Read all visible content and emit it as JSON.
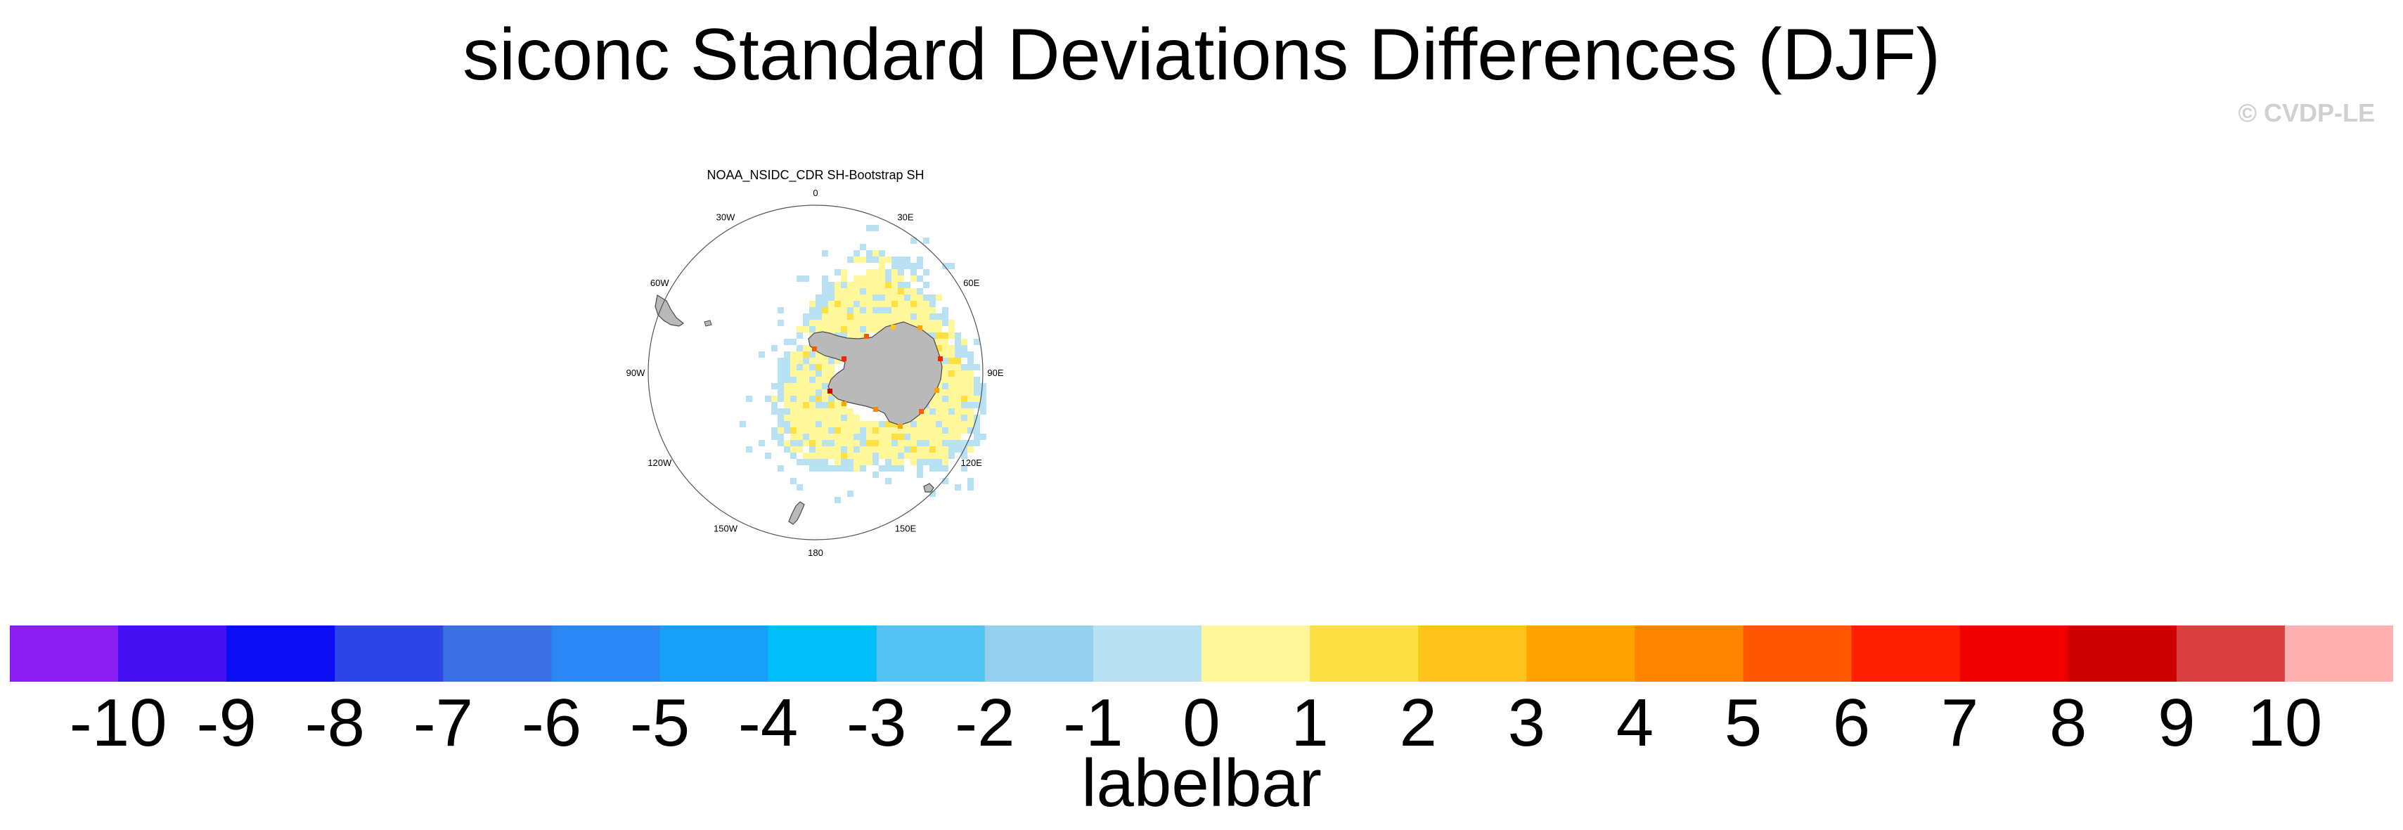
{
  "title": "siconc Standard Deviations Differences (DJF)",
  "credit": "© CVDP-LE",
  "panel": {
    "title": "NOAA_NSIDC_CDR SH-Bootstrap SH",
    "longitude_labels": [
      {
        "text": "0",
        "deg": 0
      },
      {
        "text": "30E",
        "deg": 30
      },
      {
        "text": "60E",
        "deg": 60
      },
      {
        "text": "90E",
        "deg": 90
      },
      {
        "text": "120E",
        "deg": 120
      },
      {
        "text": "150E",
        "deg": 150
      },
      {
        "text": "180",
        "deg": 180
      },
      {
        "text": "150W",
        "deg": 210
      },
      {
        "text": "120W",
        "deg": 240
      },
      {
        "text": "90W",
        "deg": 270
      },
      {
        "text": "60W",
        "deg": 300
      },
      {
        "text": "30W",
        "deg": 330
      }
    ]
  },
  "labelbar": {
    "label": "labelbar",
    "ticks": [
      "-10",
      "-9",
      "-8",
      "-7",
      "-6",
      "-5",
      "-4",
      "-3",
      "-2",
      "-1",
      "0",
      "1",
      "2",
      "3",
      "4",
      "5",
      "6",
      "7",
      "8",
      "9",
      "10"
    ],
    "colors": [
      "#8a1df0",
      "#4410f2",
      "#0c0cf5",
      "#2d45e6",
      "#3b6fe6",
      "#2a87f5",
      "#17a0fa",
      "#03bff9",
      "#52c3f2",
      "#96cfee",
      "#b9e1f4",
      "#fff79a",
      "#ffe042",
      "#ffc41c",
      "#ffa300",
      "#ff8500",
      "#ff5800",
      "#ff2000",
      "#f00000",
      "#cc0000",
      "#dc3f3f",
      "#ffb1b1"
    ]
  },
  "colors": {
    "land": "#b9b9b9",
    "land_outline": "#4a4a4a",
    "circle": "#555555"
  }
}
